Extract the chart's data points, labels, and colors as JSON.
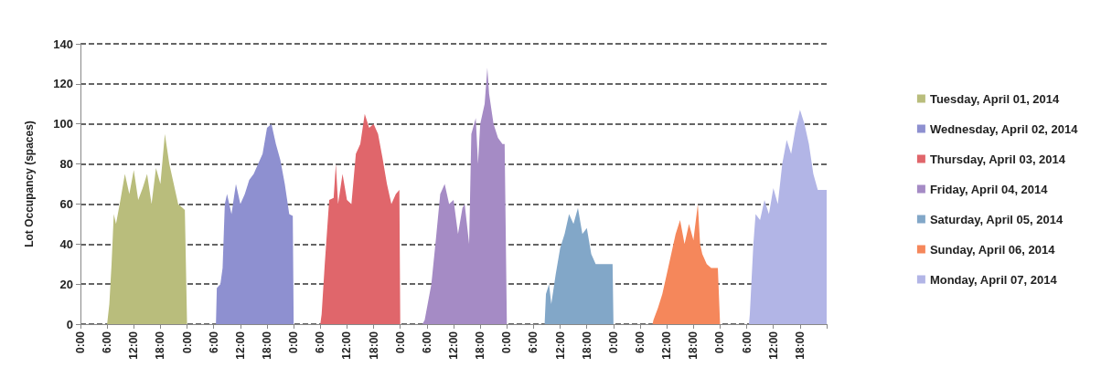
{
  "chart_data": {
    "type": "area",
    "ylabel": "Lot Occupancy (spaces)",
    "xlim": [
      "2014-04-01T00:00",
      "2014-04-08T00:00"
    ],
    "ylim": [
      0,
      140
    ],
    "yticks": [
      0,
      20,
      40,
      60,
      80,
      100,
      120,
      140
    ],
    "xticks": [
      {
        "value": "2014-04-01T00:00",
        "label": "0:00"
      },
      {
        "value": "2014-04-01T06:00",
        "label": "6:00"
      },
      {
        "value": "2014-04-01T12:00",
        "label": "12:00"
      },
      {
        "value": "2014-04-01T18:00",
        "label": "18:00"
      },
      {
        "value": "2014-04-02T00:00",
        "label": "0:00"
      },
      {
        "value": "2014-04-02T06:00",
        "label": "6:00"
      },
      {
        "value": "2014-04-02T12:00",
        "label": "12:00"
      },
      {
        "value": "2014-04-02T18:00",
        "label": "18:00"
      },
      {
        "value": "2014-04-03T00:00",
        "label": "0:00"
      },
      {
        "value": "2014-04-03T06:00",
        "label": "6:00"
      },
      {
        "value": "2014-04-03T12:00",
        "label": "12:00"
      },
      {
        "value": "2014-04-03T18:00",
        "label": "18:00"
      },
      {
        "value": "2014-04-04T00:00",
        "label": "0:00"
      },
      {
        "value": "2014-04-04T06:00",
        "label": "6:00"
      },
      {
        "value": "2014-04-04T12:00",
        "label": "12:00"
      },
      {
        "value": "2014-04-04T18:00",
        "label": "18:00"
      },
      {
        "value": "2014-04-05T00:00",
        "label": "0:00"
      },
      {
        "value": "2014-04-05T06:00",
        "label": "6:00"
      },
      {
        "value": "2014-04-05T12:00",
        "label": "12:00"
      },
      {
        "value": "2014-04-05T18:00",
        "label": "18:00"
      },
      {
        "value": "2014-04-06T00:00",
        "label": "0:00"
      },
      {
        "value": "2014-04-06T06:00",
        "label": "6:00"
      },
      {
        "value": "2014-04-06T12:00",
        "label": "12:00"
      },
      {
        "value": "2014-04-06T18:00",
        "label": "18:00"
      },
      {
        "value": "2014-04-07T00:00",
        "label": "0:00"
      },
      {
        "value": "2014-04-07T06:00",
        "label": "6:00"
      },
      {
        "value": "2014-04-07T12:00",
        "label": "12:00"
      },
      {
        "value": "2014-04-07T18:00",
        "label": "18:00"
      },
      {
        "value": "2014-04-08T00:00",
        "label": null
      }
    ],
    "grid": "y",
    "legend": "right",
    "marker": "none",
    "series": [
      {
        "name": "Tuesday, April 01, 2014",
        "color": "#b9bd7c",
        "x": [
          "2014-04-01T00:00",
          "2014-04-01T06:00",
          "2014-04-01T06:30",
          "2014-04-01T07:00",
          "2014-04-01T07:30",
          "2014-04-01T08:00",
          "2014-04-01T09:00",
          "2014-04-01T10:00",
          "2014-04-01T11:00",
          "2014-04-01T12:00",
          "2014-04-01T13:00",
          "2014-04-01T14:00",
          "2014-04-01T15:00",
          "2014-04-01T16:00",
          "2014-04-01T17:00",
          "2014-04-01T18:00",
          "2014-04-01T19:00",
          "2014-04-01T20:00",
          "2014-04-01T21:00",
          "2014-04-01T22:00",
          "2014-04-01T23:00",
          "2014-04-01T23:30",
          "2014-04-02T00:00"
        ],
        "values": [
          0,
          0,
          10,
          30,
          55,
          50,
          62,
          75,
          65,
          77,
          62,
          68,
          75,
          60,
          78,
          70,
          95,
          80,
          70,
          60,
          58,
          57,
          0
        ]
      },
      {
        "name": "Wednesday, April 02, 2014",
        "color": "#8e90d0",
        "x": [
          "2014-04-02T00:00",
          "2014-04-02T06:30",
          "2014-04-02T06:42",
          "2014-04-02T07:30",
          "2014-04-02T08:00",
          "2014-04-02T08:30",
          "2014-04-02T09:00",
          "2014-04-02T10:00",
          "2014-04-02T11:00",
          "2014-04-02T12:00",
          "2014-04-02T13:00",
          "2014-04-02T14:00",
          "2014-04-02T15:00",
          "2014-04-02T16:00",
          "2014-04-02T17:00",
          "2014-04-02T18:00",
          "2014-04-02T19:00",
          "2014-04-02T20:00",
          "2014-04-02T21:00",
          "2014-04-02T22:00",
          "2014-04-02T23:00",
          "2014-04-02T23:48",
          "2014-04-03T00:00"
        ],
        "values": [
          0,
          0,
          18,
          20,
          28,
          60,
          65,
          55,
          70,
          60,
          65,
          72,
          75,
          80,
          85,
          98,
          100,
          90,
          82,
          70,
          55,
          54,
          0
        ]
      },
      {
        "name": "Thursday, April 03, 2014",
        "color": "#e0666b",
        "x": [
          "2014-04-03T00:00",
          "2014-04-03T06:00",
          "2014-04-03T06:18",
          "2014-04-03T07:00",
          "2014-04-03T08:00",
          "2014-04-03T09:00",
          "2014-04-03T09:30",
          "2014-04-03T10:00",
          "2014-04-03T11:00",
          "2014-04-03T12:00",
          "2014-04-03T13:00",
          "2014-04-03T14:00",
          "2014-04-03T15:00",
          "2014-04-03T16:00",
          "2014-04-03T17:00",
          "2014-04-03T18:00",
          "2014-04-03T19:00",
          "2014-04-03T20:00",
          "2014-04-03T21:00",
          "2014-04-03T22:00",
          "2014-04-03T23:00",
          "2014-04-03T23:48",
          "2014-04-04T00:00"
        ],
        "values": [
          0,
          0,
          5,
          30,
          62,
          63,
          80,
          60,
          75,
          62,
          60,
          85,
          90,
          105,
          98,
          100,
          95,
          83,
          70,
          60,
          65,
          67,
          0
        ]
      },
      {
        "name": "Friday, April 04, 2014",
        "color": "#a58bc5",
        "x": [
          "2014-04-04T00:00",
          "2014-04-04T05:00",
          "2014-04-04T05:30",
          "2014-04-04T07:00",
          "2014-04-04T08:00",
          "2014-04-04T09:00",
          "2014-04-04T10:00",
          "2014-04-04T11:00",
          "2014-04-04T12:00",
          "2014-04-04T13:00",
          "2014-04-04T14:00",
          "2014-04-04T14:30",
          "2014-04-04T15:30",
          "2014-04-04T16:00",
          "2014-04-04T17:00",
          "2014-04-04T17:30",
          "2014-04-04T18:00",
          "2014-04-04T19:00",
          "2014-04-04T19:36",
          "2014-04-04T20:00",
          "2014-04-04T21:00",
          "2014-04-04T22:00",
          "2014-04-04T23:00",
          "2014-04-04T23:30",
          "2014-04-05T00:00"
        ],
        "values": [
          0,
          0,
          2,
          20,
          42,
          65,
          70,
          60,
          62,
          45,
          58,
          60,
          40,
          95,
          103,
          80,
          100,
          110,
          128,
          115,
          100,
          93,
          90,
          90,
          0
        ]
      },
      {
        "name": "Saturday, April 05, 2014",
        "color": "#82a7c8",
        "x": [
          "2014-04-05T00:00",
          "2014-04-05T08:30",
          "2014-04-05T08:48",
          "2014-04-05T09:30",
          "2014-04-05T10:00",
          "2014-04-05T11:00",
          "2014-04-05T12:00",
          "2014-04-05T13:00",
          "2014-04-05T14:00",
          "2014-04-05T15:00",
          "2014-04-05T16:00",
          "2014-04-05T17:00",
          "2014-04-05T18:00",
          "2014-04-05T19:00",
          "2014-04-05T20:00",
          "2014-04-05T22:00",
          "2014-04-05T23:48",
          "2014-04-06T00:00"
        ],
        "values": [
          0,
          0,
          15,
          20,
          10,
          25,
          38,
          45,
          55,
          50,
          58,
          45,
          48,
          35,
          30,
          30,
          30,
          0
        ]
      },
      {
        "name": "Sunday, April 06, 2014",
        "color": "#f5875b",
        "x": [
          "2014-04-06T00:00",
          "2014-04-06T08:48",
          "2014-04-06T09:00",
          "2014-04-06T10:00",
          "2014-04-06T11:00",
          "2014-04-06T12:00",
          "2014-04-06T13:00",
          "2014-04-06T14:00",
          "2014-04-06T15:00",
          "2014-04-06T16:00",
          "2014-04-06T17:00",
          "2014-04-06T18:00",
          "2014-04-06T19:00",
          "2014-04-06T19:30",
          "2014-04-06T20:00",
          "2014-04-06T21:00",
          "2014-04-06T22:00",
          "2014-04-06T23:30",
          "2014-04-07T00:00"
        ],
        "values": [
          0,
          0,
          2,
          8,
          15,
          25,
          35,
          45,
          52,
          40,
          50,
          42,
          60,
          40,
          35,
          30,
          28,
          28,
          0
        ]
      },
      {
        "name": "Monday, April 07, 2014",
        "color": "#b2b5e6",
        "x": [
          "2014-04-07T00:00",
          "2014-04-07T06:30",
          "2014-04-07T06:42",
          "2014-04-07T07:30",
          "2014-04-07T08:00",
          "2014-04-07T09:00",
          "2014-04-07T10:00",
          "2014-04-07T11:00",
          "2014-04-07T12:00",
          "2014-04-07T13:00",
          "2014-04-07T14:00",
          "2014-04-07T15:00",
          "2014-04-07T16:00",
          "2014-04-07T17:00",
          "2014-04-07T18:00",
          "2014-04-07T19:00",
          "2014-04-07T20:00",
          "2014-04-07T21:00",
          "2014-04-07T22:00",
          "2014-04-07T23:00",
          "2014-04-08T00:00"
        ],
        "values": [
          0,
          0,
          5,
          40,
          55,
          52,
          62,
          55,
          68,
          60,
          80,
          92,
          85,
          98,
          107,
          100,
          90,
          75,
          67,
          67,
          67
        ]
      }
    ]
  }
}
